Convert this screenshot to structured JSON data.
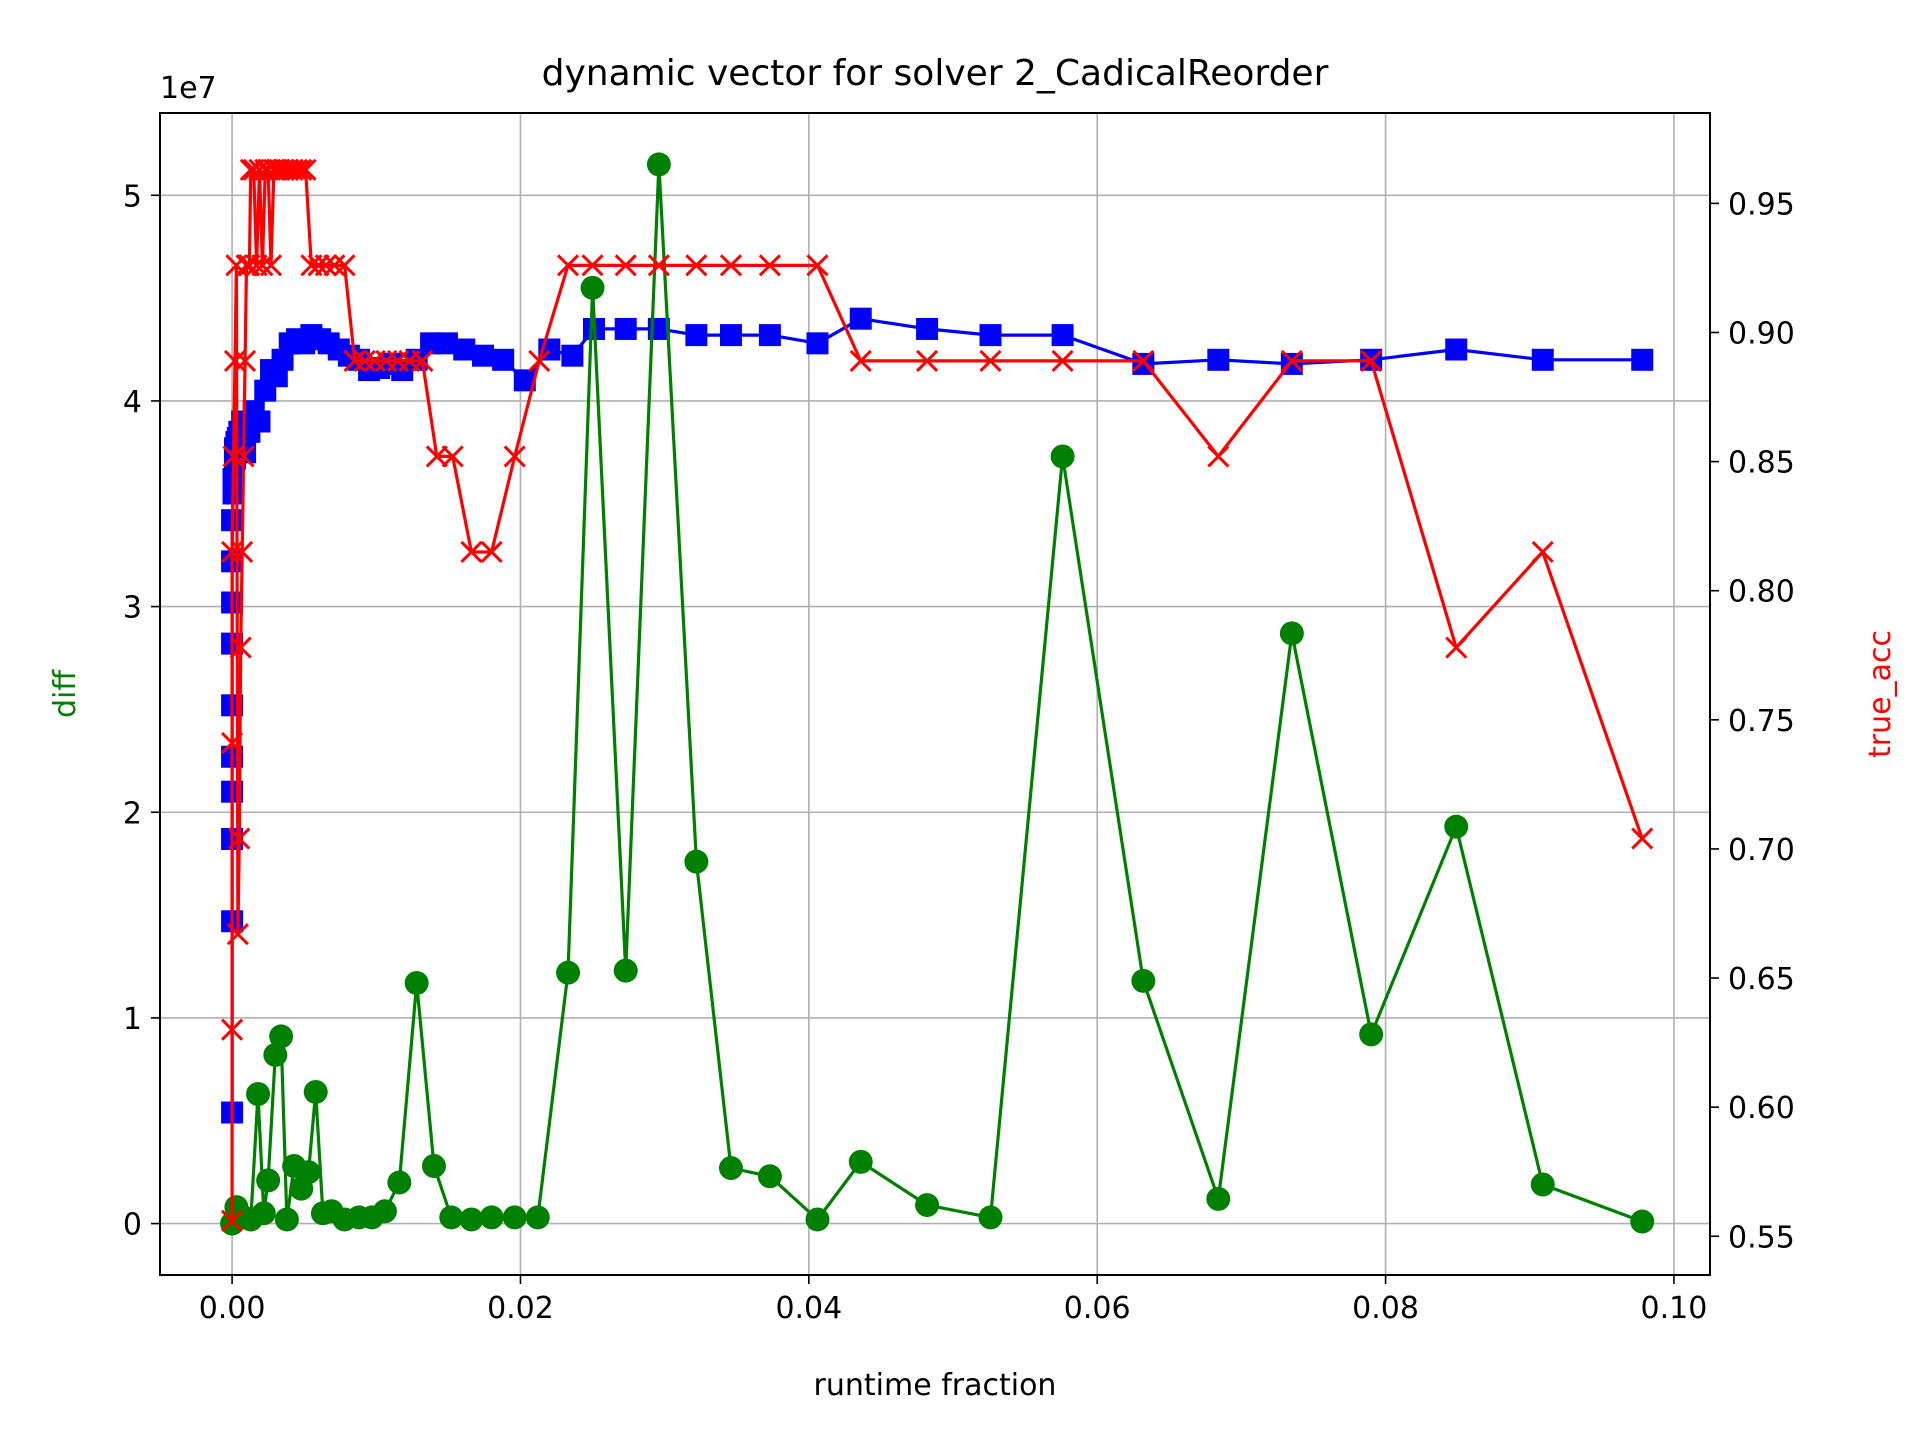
{
  "chart_data": {
    "type": "line",
    "title": "dynamic vector for solver 2_CadicalReorder",
    "xlabel": "runtime fraction",
    "ylabel_left": "diff",
    "ylabel_right": "true_acc",
    "left_scale_label": "1e7",
    "xlim": [
      -0.005,
      0.1025
    ],
    "ylim_left": [
      -0.25,
      5.4
    ],
    "ylim_right": [
      0.535,
      0.985
    ],
    "x_ticks": [
      0.0,
      0.02,
      0.04,
      0.06,
      0.08,
      0.1
    ],
    "x_tick_labels": [
      "0.00",
      "0.02",
      "0.04",
      "0.06",
      "0.08",
      "0.10"
    ],
    "y_left_ticks": [
      0,
      1,
      2,
      3,
      4,
      5
    ],
    "y_left_tick_labels": [
      "0",
      "1",
      "2",
      "3",
      "4",
      "5"
    ],
    "y_right_ticks": [
      0.55,
      0.6,
      0.65,
      0.7,
      0.75,
      0.8,
      0.85,
      0.9,
      0.95
    ],
    "y_right_tick_labels": [
      "0.55",
      "0.60",
      "0.65",
      "0.70",
      "0.75",
      "0.80",
      "0.85",
      "0.90",
      "0.95"
    ],
    "grid": true,
    "colors": {
      "diff": "#008000",
      "blue": "#0000ff",
      "true_acc": "#ff0000"
    },
    "series": [
      {
        "axis": "left",
        "color": "#0000ff",
        "marker": "square",
        "x": [
          0.0,
          0.0,
          0.0,
          0.0,
          0.0,
          0.0,
          0.0,
          0.0,
          0.0,
          0.0,
          0.0001,
          0.0001,
          0.0002,
          0.0002,
          0.0003,
          0.0004,
          0.0005,
          0.0007,
          0.0009,
          0.0012,
          0.0015,
          0.0019,
          0.0023,
          0.0027,
          0.0031,
          0.0035,
          0.004,
          0.0045,
          0.005,
          0.0055,
          0.0061,
          0.0067,
          0.0074,
          0.0081,
          0.0088,
          0.0095,
          0.0102,
          0.011,
          0.0118,
          0.0128,
          0.0138,
          0.0149,
          0.0161,
          0.0174,
          0.0188,
          0.0203,
          0.022,
          0.0236,
          0.0251,
          0.0273,
          0.0296,
          0.0322,
          0.0346,
          0.0373,
          0.0406,
          0.0436,
          0.0482,
          0.0526,
          0.0576,
          0.0632,
          0.0684,
          0.0735,
          0.079,
          0.0849,
          0.0909,
          0.0978
        ],
        "y": [
          0.54,
          1.47,
          1.87,
          2.1,
          2.27,
          2.52,
          2.82,
          3.02,
          3.22,
          3.42,
          3.55,
          3.62,
          3.72,
          3.77,
          3.8,
          3.82,
          3.85,
          3.9,
          3.75,
          3.85,
          3.95,
          3.9,
          4.05,
          4.15,
          4.12,
          4.2,
          4.28,
          4.3,
          4.28,
          4.32,
          4.3,
          4.28,
          4.25,
          4.22,
          4.2,
          4.15,
          4.16,
          4.18,
          4.15,
          4.2,
          4.28,
          4.28,
          4.25,
          4.22,
          4.2,
          4.1,
          4.25,
          4.22,
          4.35,
          4.35,
          4.35,
          4.32,
          4.32,
          4.32,
          4.28,
          4.4,
          4.35,
          4.32,
          4.32,
          4.18,
          4.2,
          4.18,
          4.2,
          4.25,
          4.2,
          4.2
        ]
      },
      {
        "name": "diff",
        "axis": "left",
        "color": "#008000",
        "marker": "circle",
        "x": [
          0.0,
          0.0003,
          0.0008,
          0.0013,
          0.0018,
          0.0022,
          0.0025,
          0.003,
          0.0034,
          0.0038,
          0.0043,
          0.0048,
          0.0053,
          0.0058,
          0.0063,
          0.0069,
          0.0078,
          0.0088,
          0.0097,
          0.0106,
          0.0116,
          0.0128,
          0.014,
          0.0152,
          0.0166,
          0.018,
          0.0196,
          0.0212,
          0.0233,
          0.025,
          0.0273,
          0.0296,
          0.0322,
          0.0346,
          0.0373,
          0.0406,
          0.0436,
          0.0482,
          0.0526,
          0.0576,
          0.0632,
          0.0684,
          0.0735,
          0.079,
          0.0849,
          0.0909,
          0.0978
        ],
        "y": [
          0.0,
          0.08,
          0.03,
          0.02,
          0.63,
          0.05,
          0.21,
          0.82,
          0.91,
          0.02,
          0.28,
          0.17,
          0.25,
          0.64,
          0.05,
          0.06,
          0.02,
          0.03,
          0.03,
          0.06,
          0.2,
          1.17,
          0.28,
          0.03,
          0.02,
          0.03,
          0.03,
          0.03,
          1.22,
          4.55,
          1.23,
          5.15,
          1.76,
          0.27,
          0.23,
          0.02,
          0.3,
          0.09,
          0.03,
          3.73,
          1.18,
          0.12,
          2.87,
          0.92,
          1.93,
          0.19,
          0.01
        ]
      },
      {
        "name": "true_acc",
        "axis": "right",
        "color": "#ff0000",
        "marker": "x",
        "x": [
          0.0,
          0.0,
          0.0,
          0.0,
          0.0001,
          0.0002,
          0.0003,
          0.0004,
          0.0005,
          0.0006,
          0.0007,
          0.0008,
          0.0009,
          0.001,
          0.0011,
          0.0012,
          0.0013,
          0.0015,
          0.0017,
          0.0019,
          0.0021,
          0.0023,
          0.0025,
          0.0027,
          0.0029,
          0.0031,
          0.0033,
          0.0036,
          0.0039,
          0.0042,
          0.0045,
          0.0048,
          0.0051,
          0.0055,
          0.006,
          0.0065,
          0.0071,
          0.0078,
          0.0085,
          0.0092,
          0.0099,
          0.0107,
          0.0115,
          0.0123,
          0.0132,
          0.0142,
          0.0153,
          0.0166,
          0.018,
          0.0196,
          0.0213,
          0.0233,
          0.025,
          0.0273,
          0.0296,
          0.0322,
          0.0346,
          0.0373,
          0.0406,
          0.0436,
          0.0482,
          0.0526,
          0.0576,
          0.0632,
          0.0684,
          0.0735,
          0.079,
          0.0849,
          0.0909,
          0.0978
        ],
        "y": [
          0.556,
          0.63,
          0.741,
          0.815,
          0.852,
          0.889,
          0.926,
          0.667,
          0.704,
          0.778,
          0.815,
          0.852,
          0.889,
          0.926,
          0.926,
          0.926,
          0.963,
          0.963,
          0.926,
          0.963,
          0.926,
          0.963,
          0.963,
          0.926,
          0.963,
          0.963,
          0.963,
          0.963,
          0.963,
          0.963,
          0.963,
          0.963,
          0.963,
          0.926,
          0.926,
          0.926,
          0.926,
          0.926,
          0.889,
          0.889,
          0.889,
          0.889,
          0.889,
          0.889,
          0.889,
          0.852,
          0.852,
          0.815,
          0.815,
          0.852,
          0.889,
          0.926,
          0.926,
          0.926,
          0.926,
          0.926,
          0.926,
          0.926,
          0.926,
          0.889,
          0.889,
          0.889,
          0.889,
          0.889,
          0.852,
          0.889,
          0.889,
          0.778,
          0.815,
          0.704
        ]
      }
    ]
  }
}
